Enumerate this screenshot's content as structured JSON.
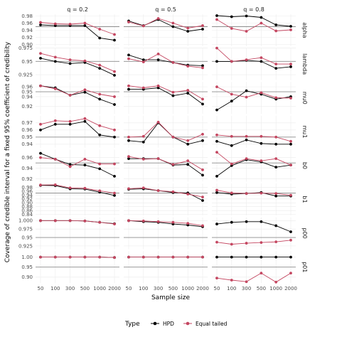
{
  "chart_data": {
    "type": "line",
    "xlabel": "Sample size",
    "ylabel": "Coverage of credible interval for a fixed 95% coefficient of credibility",
    "x_categories": [
      "50",
      "100",
      "300",
      "500",
      "1000",
      "2000"
    ],
    "reference_line": 0.95,
    "columns": [
      "q = 0.2",
      "q = 0.5",
      "q = 0.8"
    ],
    "rows": [
      {
        "label": "alpha",
        "ylim": [
          0.895,
          0.985
        ],
        "ticks": [
          {
            "v": 0.9,
            "t": "0.90"
          },
          {
            "v": 0.92,
            "t": "0.92"
          },
          {
            "v": 0.94,
            "t": "0.94"
          },
          {
            "v": 0.96,
            "t": "0.96"
          },
          {
            "v": 0.98,
            "t": "0.98"
          }
        ]
      },
      {
        "label": "lambda",
        "ylim": [
          0.915,
          0.975
        ],
        "ticks": [
          {
            "v": 0.925,
            "t": "0.925"
          },
          {
            "v": 0.95,
            "t": "0.95"
          },
          {
            "v": 0.975,
            "t": "0.975"
          }
        ]
      },
      {
        "label": "mu0",
        "ylim": [
          0.905,
          0.97
        ],
        "ticks": [
          {
            "v": 0.92,
            "t": "0.92"
          },
          {
            "v": 0.94,
            "t": "0.94"
          },
          {
            "v": 0.95,
            "t": "0.95"
          },
          {
            "v": 0.96,
            "t": "0.96"
          }
        ]
      },
      {
        "label": "mu1",
        "ylim": [
          0.935,
          0.98
        ],
        "ticks": [
          {
            "v": 0.94,
            "t": "0.94"
          },
          {
            "v": 0.95,
            "t": "0.95"
          },
          {
            "v": 0.96,
            "t": "0.96"
          },
          {
            "v": 0.97,
            "t": "0.97"
          }
        ]
      },
      {
        "label": "b0",
        "ylim": [
          0.915,
          0.975
        ],
        "ticks": [
          {
            "v": 0.92,
            "t": "0.92"
          },
          {
            "v": 0.94,
            "t": "0.94"
          },
          {
            "v": 0.96,
            "t": "0.96"
          }
        ]
      },
      {
        "label": "b1",
        "ylim": [
          0.835,
          1.0
        ],
        "ticks": [
          {
            "v": 0.84,
            "t": "0.84"
          },
          {
            "v": 0.86,
            "t": "0.86"
          },
          {
            "v": 0.88,
            "t": "0.88"
          },
          {
            "v": 0.9,
            "t": "0.90"
          },
          {
            "v": 0.92,
            "t": "0.92"
          },
          {
            "v": 0.94,
            "t": "0.94"
          },
          {
            "v": 0.96,
            "t": "0.96"
          },
          {
            "v": 0.98,
            "t": "0.98"
          }
        ]
      },
      {
        "label": "p00",
        "ylim": [
          0.915,
          1.01
        ],
        "ticks": [
          {
            "v": 0.925,
            "t": "0.925"
          },
          {
            "v": 0.95,
            "t": "0.95"
          },
          {
            "v": 0.975,
            "t": "0.975"
          },
          {
            "v": 1.0,
            "t": "1.000"
          }
        ]
      },
      {
        "label": "p01",
        "ylim": [
          0.87,
          1.03
        ],
        "ticks": [
          {
            "v": 0.9,
            "t": "0.90"
          },
          {
            "v": 0.95,
            "t": "0.95"
          },
          {
            "v": 1.0,
            "t": "1.00"
          }
        ]
      }
    ],
    "series": [
      {
        "name": "HPD",
        "color": "#000000",
        "values": [
          [
            [
              0.955,
              0.953,
              0.953,
              0.953,
              0.918,
              0.912
            ],
            [
              0.966,
              0.953,
              0.97,
              0.95,
              0.937,
              0.943
            ],
            [
              0.981,
              0.978,
              0.98,
              0.976,
              0.955,
              0.951
            ]
          ],
          [
            [
              0.956,
              0.95,
              0.946,
              0.948,
              0.937,
              0.924
            ],
            [
              0.962,
              0.953,
              0.953,
              0.948,
              0.943,
              0.942
            ],
            [
              0.95,
              0.95,
              0.952,
              0.95,
              0.937,
              0.94
            ]
          ],
          [
            [
              0.962,
              0.958,
              0.943,
              0.949,
              0.935,
              0.924
            ],
            [
              0.955,
              0.955,
              0.958,
              0.942,
              0.947,
              0.925
            ],
            [
              0.913,
              0.931,
              0.952,
              0.945,
              0.935,
              0.94
            ]
          ],
          [
            [
              0.96,
              0.968,
              0.968,
              0.972,
              0.953,
              0.95
            ],
            [
              0.945,
              0.943,
              0.97,
              0.95,
              0.94,
              0.945
            ],
            [
              0.944,
              0.938,
              0.946,
              0.941,
              0.94,
              0.94
            ]
          ],
          [
            [
              0.968,
              0.957,
              0.947,
              0.946,
              0.939,
              0.925
            ],
            [
              0.958,
              0.958,
              0.958,
              0.946,
              0.947,
              0.927
            ],
            [
              0.925,
              0.945,
              0.956,
              0.952,
              0.942,
              0.946
            ]
          ],
          [
            [
              0.99,
              0.989,
              0.972,
              0.971,
              0.955,
              0.938
            ],
            [
              0.97,
              0.972,
              0.963,
              0.953,
              0.951,
              0.912
            ],
            [
              0.953,
              0.945,
              0.948,
              0.953,
              0.935,
              0.935
            ]
          ],
          [
            [
              1.0,
              1.0,
              1.0,
              0.999,
              0.995,
              0.991
            ],
            [
              1.0,
              0.997,
              0.995,
              0.99,
              0.987,
              0.982
            ],
            [
              0.99,
              0.995,
              0.997,
              0.997,
              0.985,
              0.967
            ]
          ],
          [
            [
              1.0,
              1.0,
              1.0,
              1.0,
              1.0,
              0.998
            ],
            [
              1.0,
              1.0,
              1.0,
              1.0,
              1.0,
              1.0
            ],
            [
              1.0,
              1.0,
              1.0,
              1.0,
              1.0,
              1.0
            ]
          ]
        ]
      },
      {
        "name": "Equal tailed",
        "color": "#c44660",
        "values": [
          [
            [
              0.962,
              0.958,
              0.957,
              0.96,
              0.943,
              0.928
            ],
            [
              0.963,
              0.952,
              0.973,
              0.96,
              0.946,
              0.953
            ],
            [
              0.97,
              0.945,
              0.937,
              0.96,
              0.938,
              0.941
            ]
          ],
          [
            [
              0.965,
              0.958,
              0.953,
              0.951,
              0.943,
              0.931
            ],
            [
              0.955,
              0.949,
              0.964,
              0.948,
              0.941,
              0.938
            ],
            [
              0.975,
              0.95,
              0.953,
              0.957,
              0.945,
              0.945
            ]
          ],
          [
            [
              0.962,
              0.956,
              0.943,
              0.954,
              0.945,
              0.94
            ],
            [
              0.962,
              0.958,
              0.962,
              0.949,
              0.953,
              0.935
            ],
            [
              0.96,
              0.945,
              0.939,
              0.948,
              0.938,
              0.937
            ]
          ],
          [
            [
              0.968,
              0.973,
              0.972,
              0.976,
              0.966,
              0.96
            ],
            [
              0.95,
              0.951,
              0.971,
              0.95,
              0.945,
              0.954
            ],
            [
              0.953,
              0.951,
              0.951,
              0.951,
              0.95,
              0.944
            ]
          ],
          [
            [
              0.96,
              0.957,
              0.943,
              0.957,
              0.948,
              0.948
            ],
            [
              0.962,
              0.957,
              0.958,
              0.947,
              0.954,
              0.937
            ],
            [
              0.97,
              0.948,
              0.958,
              0.954,
              0.958,
              0.946
            ]
          ],
          [
            [
              0.992,
              0.993,
              0.977,
              0.975,
              0.962,
              0.95
            ],
            [
              0.973,
              0.977,
              0.963,
              0.957,
              0.945,
              0.93
            ],
            [
              0.965,
              0.951,
              0.948,
              0.95,
              0.948,
              0.939
            ]
          ],
          [
            [
              1.0,
              1.0,
              1.0,
              0.999,
              0.995,
              0.99
            ],
            [
              1.0,
              0.999,
              0.997,
              0.995,
              0.992,
              0.985
            ],
            [
              0.936,
              0.93,
              0.933,
              0.935,
              0.937,
              0.942
            ]
          ],
          [
            [
              1.0,
              1.0,
              1.0,
              1.0,
              1.0,
              0.998
            ],
            [
              1.0,
              1.0,
              1.0,
              1.0,
              1.0,
              1.0
            ],
            [
              0.895,
              0.885,
              0.877,
              0.92,
              0.875,
              0.92
            ]
          ]
        ]
      }
    ],
    "legend": {
      "title": "Type",
      "position": "bottom",
      "items": [
        "HPD",
        "Equal tailed"
      ]
    },
    "grid": true
  }
}
